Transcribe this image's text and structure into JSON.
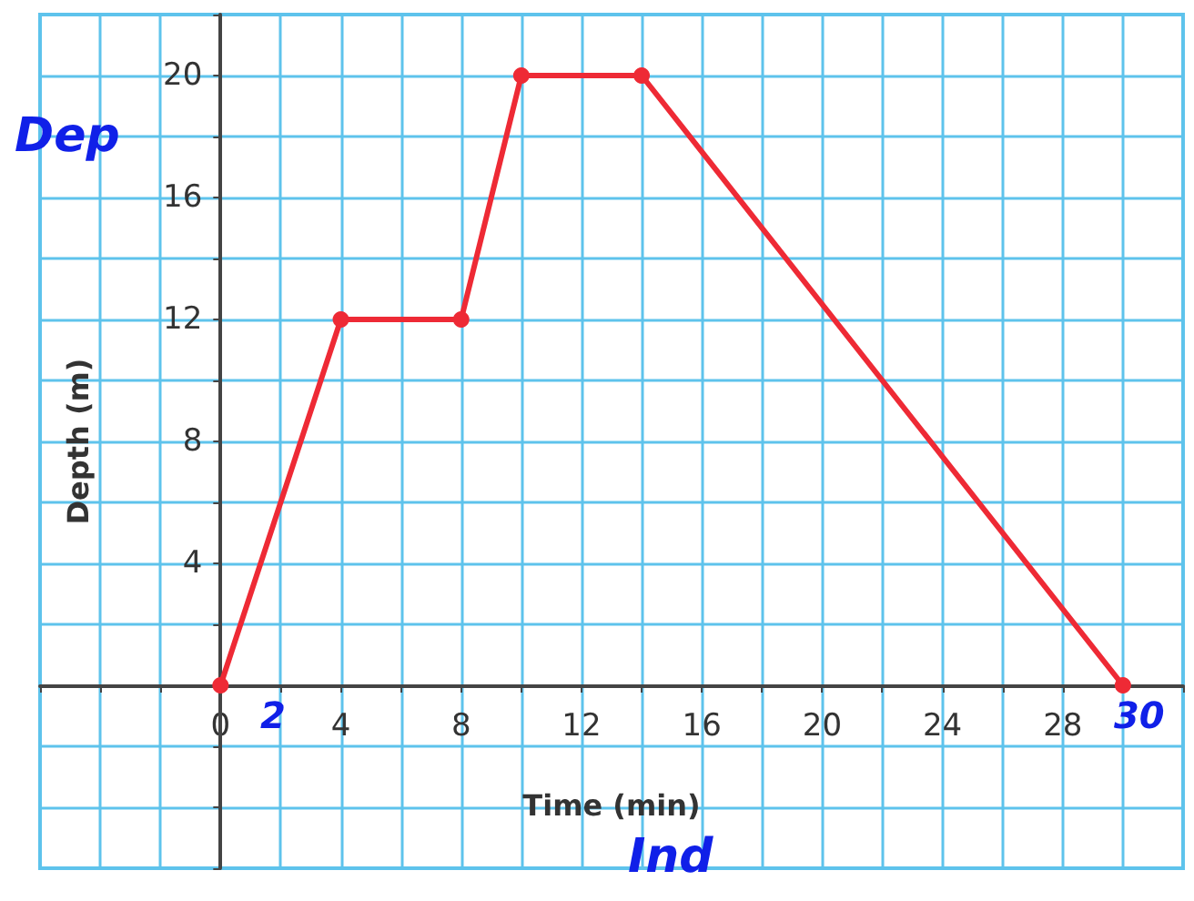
{
  "chart_data": {
    "type": "line",
    "xlabel": "Time (min)",
    "ylabel": "Depth (m)",
    "x": [
      0,
      4,
      8,
      10,
      14,
      30
    ],
    "series": [
      {
        "color": "#ee2a35",
        "values": [
          0,
          12,
          12,
          20,
          20,
          0
        ]
      }
    ],
    "xlim": [
      -6,
      32
    ],
    "ylim": [
      -6,
      22
    ],
    "xticks": [
      {
        "value": -6,
        "label": null
      },
      {
        "value": -4,
        "label": null
      },
      {
        "value": -2,
        "label": null
      },
      0,
      {
        "value": 2,
        "label": null
      },
      4,
      {
        "value": 6,
        "label": null
      },
      8,
      {
        "value": 10,
        "label": null
      },
      12,
      {
        "value": 14,
        "label": null
      },
      16,
      {
        "value": 18,
        "label": null
      },
      20,
      {
        "value": 22,
        "label": null
      },
      24,
      {
        "value": 26,
        "label": null
      },
      28,
      {
        "value": 30,
        "label": null
      },
      {
        "value": 32,
        "label": null
      }
    ],
    "yticks": [
      {
        "value": -6,
        "label": null
      },
      {
        "value": -4,
        "label": null
      },
      {
        "value": -2,
        "label": null
      },
      {
        "value": 0,
        "label": null
      },
      {
        "value": 2,
        "label": null
      },
      4,
      {
        "value": 6,
        "label": null
      },
      8,
      {
        "value": 10,
        "label": null
      },
      12,
      {
        "value": 14,
        "label": null
      },
      16,
      {
        "value": 18,
        "label": null
      },
      20,
      {
        "value": 22,
        "label": null
      }
    ],
    "grid": true,
    "marker": "circle",
    "line_style": "solid",
    "annotations": [
      "Dep",
      "Ind",
      "2",
      "30"
    ]
  }
}
